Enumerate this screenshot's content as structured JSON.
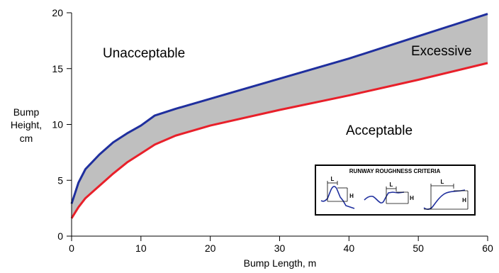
{
  "chart_data": {
    "type": "area",
    "title": "",
    "xlabel": "Bump Length, m",
    "ylabel_lines": [
      "Bump",
      "Height,",
      "cm"
    ],
    "xlim": [
      0,
      60
    ],
    "ylim": [
      0,
      20
    ],
    "xticks": [
      0,
      10,
      20,
      30,
      40,
      50,
      60
    ],
    "yticks": [
      0,
      5,
      10,
      15,
      20
    ],
    "grid": false,
    "series": [
      {
        "color": "#1f2f9e",
        "x": [
          0,
          1,
          2,
          4,
          6,
          8,
          10,
          12,
          15,
          20,
          30,
          40,
          50,
          60
        ],
        "y": [
          2.9,
          4.8,
          6.0,
          7.3,
          8.4,
          9.2,
          9.9,
          10.8,
          11.4,
          12.3,
          14.1,
          15.9,
          17.9,
          19.9
        ]
      },
      {
        "color": "#e8202a",
        "x": [
          0,
          1,
          2,
          4,
          6,
          8,
          10,
          12,
          15,
          20,
          30,
          40,
          50,
          60
        ],
        "y": [
          1.6,
          2.6,
          3.4,
          4.5,
          5.6,
          6.6,
          7.4,
          8.2,
          9.0,
          9.9,
          11.3,
          12.6,
          14.0,
          15.5
        ]
      }
    ],
    "band_color": "#bfbfbf",
    "annotations": {
      "unacceptable": "Unacceptable",
      "excessive": "Excessive",
      "acceptable": "Acceptable"
    },
    "inset": {
      "title": "RUNWAY ROUGHNESS CRITERIA",
      "length_label": "L",
      "height_label": "H"
    }
  }
}
